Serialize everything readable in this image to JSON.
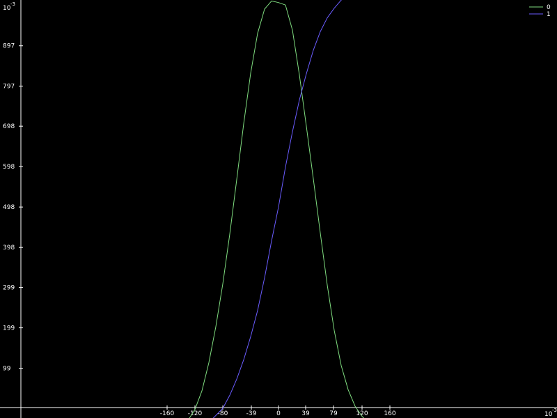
{
  "chart_data": {
    "type": "line",
    "background": "#000000",
    "axis_color": "#ffffff",
    "grid": false,
    "legend_position": "top-right",
    "x_scale_label": {
      "base": "10",
      "exponent": "-3"
    },
    "y_scale_label": {
      "base": "10",
      "exponent": "-3"
    },
    "xlim": [
      -0.206,
      0.26
    ],
    "ylim": [
      -0.06,
      1.045
    ],
    "x_ticks": [
      {
        "value": -0.16,
        "label": "-160"
      },
      {
        "value": -0.12,
        "label": "-120"
      },
      {
        "value": -0.08,
        "label": "-80"
      },
      {
        "value": -0.039,
        "label": "-39"
      },
      {
        "value": 0.0,
        "label": "0"
      },
      {
        "value": 0.039,
        "label": "39"
      },
      {
        "value": 0.079,
        "label": "79"
      },
      {
        "value": 0.12,
        "label": "120"
      },
      {
        "value": 0.16,
        "label": "160"
      }
    ],
    "y_ticks": [
      {
        "value": 0.099,
        "label": "99"
      },
      {
        "value": 0.199,
        "label": "199"
      },
      {
        "value": 0.299,
        "label": "299"
      },
      {
        "value": 0.398,
        "label": "398"
      },
      {
        "value": 0.498,
        "label": "498"
      },
      {
        "value": 0.598,
        "label": "598"
      },
      {
        "value": 0.698,
        "label": "698"
      },
      {
        "value": 0.797,
        "label": "797"
      },
      {
        "value": 0.897,
        "label": "897"
      }
    ],
    "series": [
      {
        "name": "0",
        "color": "#7fdc7f",
        "x": [
          -0.16,
          -0.15,
          -0.14,
          -0.13,
          -0.12,
          -0.11,
          -0.1,
          -0.09,
          -0.08,
          -0.07,
          -0.06,
          -0.05,
          -0.04,
          -0.03,
          -0.02,
          -0.01,
          0.0,
          0.01,
          0.02,
          0.03,
          0.04,
          0.05,
          0.06,
          0.07,
          0.08,
          0.09,
          0.1,
          0.11,
          0.12,
          0.13,
          0.14,
          0.15,
          0.16
        ],
        "y": [
          -0.06,
          -0.055,
          -0.045,
          -0.03,
          -0.003,
          0.043,
          0.113,
          0.202,
          0.308,
          0.431,
          0.566,
          0.704,
          0.829,
          0.928,
          0.988,
          1.008,
          1.004,
          0.998,
          0.936,
          0.825,
          0.698,
          0.568,
          0.434,
          0.305,
          0.193,
          0.106,
          0.046,
          0.005,
          -0.02,
          -0.037,
          -0.05,
          -0.057,
          -0.06
        ]
      },
      {
        "name": "1",
        "color": "#6a5cff",
        "x": [
          -0.16,
          -0.15,
          -0.14,
          -0.13,
          -0.12,
          -0.11,
          -0.1,
          -0.09,
          -0.08,
          -0.07,
          -0.06,
          -0.05,
          -0.04,
          -0.03,
          -0.02,
          -0.01,
          0.0,
          0.01,
          0.02,
          0.03,
          0.04,
          0.05,
          0.06,
          0.07,
          0.08,
          0.09,
          0.1,
          0.11,
          0.12,
          0.13
        ],
        "y": [
          -0.06,
          -0.06,
          -0.059,
          -0.057,
          -0.053,
          -0.046,
          -0.035,
          -0.018,
          0.0,
          0.032,
          0.072,
          0.12,
          0.177,
          0.242,
          0.323,
          0.414,
          0.498,
          0.597,
          0.684,
          0.763,
          0.828,
          0.886,
          0.932,
          0.966,
          0.99,
          1.01,
          1.024,
          1.032,
          1.036,
          1.037
        ]
      }
    ]
  }
}
